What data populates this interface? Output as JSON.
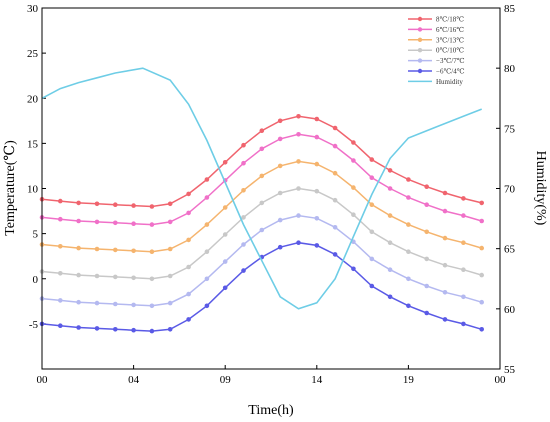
{
  "chart_data": {
    "type": "line",
    "xlabel": "Time(h)",
    "ylabel_left": "Temperature(℃)",
    "ylabel_right": "Humidity(%)",
    "x_ticks": [
      "00",
      "04",
      "09",
      "14",
      "19",
      "00"
    ],
    "x_tick_hours": [
      0,
      5,
      10,
      15,
      20,
      25
    ],
    "xlim": [
      0,
      25
    ],
    "ylim_left": [
      -10,
      30
    ],
    "y_ticks_left": [
      -5,
      0,
      5,
      10,
      15,
      20,
      25,
      30
    ],
    "ylim_right": [
      55,
      85
    ],
    "y_ticks_right": [
      55,
      60,
      65,
      70,
      75,
      80,
      85
    ],
    "legend_position": "top-right",
    "x": [
      0,
      1,
      2,
      3,
      4,
      5,
      6,
      7,
      8,
      9,
      10,
      11,
      12,
      13,
      14,
      15,
      16,
      17,
      18,
      19,
      20,
      21,
      22,
      23,
      24
    ],
    "series": [
      {
        "name": "8℃/18℃",
        "color": "#f0646e",
        "axis": "left",
        "values": [
          8.8,
          8.6,
          8.4,
          8.3,
          8.2,
          8.1,
          8.0,
          8.3,
          9.4,
          11.0,
          12.9,
          14.8,
          16.4,
          17.5,
          18.0,
          17.7,
          16.7,
          15.1,
          13.2,
          12.0,
          11.0,
          10.2,
          9.5,
          8.9,
          8.4
        ]
      },
      {
        "name": "6℃/16℃",
        "color": "#f070c8",
        "axis": "left",
        "values": [
          6.8,
          6.6,
          6.4,
          6.3,
          6.2,
          6.1,
          6.0,
          6.3,
          7.3,
          9.0,
          10.9,
          12.8,
          14.4,
          15.5,
          16.0,
          15.7,
          14.7,
          13.1,
          11.2,
          10.0,
          9.0,
          8.2,
          7.5,
          7.0,
          6.4
        ]
      },
      {
        "name": "3℃/13℃",
        "color": "#f5b46e",
        "axis": "left",
        "values": [
          3.8,
          3.6,
          3.4,
          3.3,
          3.2,
          3.1,
          3.0,
          3.3,
          4.3,
          6.0,
          7.9,
          9.8,
          11.4,
          12.5,
          13.0,
          12.7,
          11.7,
          10.1,
          8.2,
          7.0,
          6.0,
          5.2,
          4.5,
          4.0,
          3.4
        ]
      },
      {
        "name": "0℃/10℃",
        "color": "#c8c8c8",
        "axis": "left",
        "values": [
          0.8,
          0.6,
          0.4,
          0.3,
          0.2,
          0.1,
          0.0,
          0.3,
          1.3,
          3.0,
          4.9,
          6.8,
          8.4,
          9.5,
          10.0,
          9.7,
          8.7,
          7.1,
          5.2,
          4.0,
          3.0,
          2.2,
          1.5,
          1.0,
          0.4
        ]
      },
      {
        "name": "−3℃/7℃",
        "color": "#b4b9f0",
        "axis": "left",
        "values": [
          -2.2,
          -2.4,
          -2.6,
          -2.7,
          -2.8,
          -2.9,
          -3.0,
          -2.7,
          -1.7,
          0.0,
          1.9,
          3.8,
          5.4,
          6.5,
          7.0,
          6.7,
          5.7,
          4.1,
          2.2,
          1.0,
          0.0,
          -0.8,
          -1.5,
          -2.0,
          -2.6
        ]
      },
      {
        "name": "−6℃/4℃",
        "color": "#5a5ae6",
        "axis": "left",
        "values": [
          -5.0,
          -5.2,
          -5.4,
          -5.5,
          -5.6,
          -5.7,
          -5.8,
          -5.6,
          -4.5,
          -3.0,
          -1.0,
          0.9,
          2.4,
          3.5,
          4.0,
          3.7,
          2.7,
          1.1,
          -0.8,
          -2.0,
          -3.0,
          -3.8,
          -4.5,
          -5.0,
          -5.6
        ]
      },
      {
        "name": "Humidity",
        "color": "#6ecde6",
        "axis": "right",
        "x": [
          0,
          1,
          2,
          3,
          4,
          5.5,
          7,
          8,
          9,
          10,
          11,
          12,
          13,
          14,
          15,
          16,
          17,
          18,
          19,
          20,
          21,
          22,
          23,
          24
        ],
        "values": [
          77.5,
          78.3,
          78.8,
          79.2,
          79.6,
          80.0,
          79.0,
          77.0,
          74.0,
          70.5,
          67.0,
          64.0,
          61.0,
          60.0,
          60.5,
          62.5,
          66.0,
          69.5,
          72.5,
          74.2,
          74.8,
          75.4,
          76.0,
          76.6
        ]
      }
    ]
  }
}
